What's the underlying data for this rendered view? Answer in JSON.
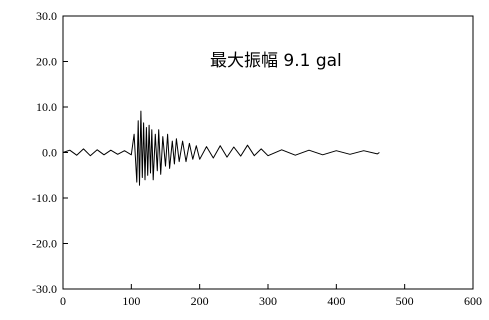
{
  "chart_data": {
    "type": "line",
    "title": "",
    "xlabel": "",
    "ylabel": "",
    "xlim": [
      0,
      600
    ],
    "ylim": [
      -30,
      30
    ],
    "x_ticks": [
      0,
      100,
      200,
      300,
      400,
      500,
      600
    ],
    "y_ticks": [
      30,
      20,
      10,
      0,
      -10,
      -20,
      -30
    ],
    "x_tick_labels": [
      "0",
      "100",
      "200",
      "300",
      "400",
      "500",
      "600"
    ],
    "y_tick_labels": [
      "30.0",
      "20.0",
      "10.0",
      "0.0",
      "-10.0",
      "-20.0",
      "-30.0"
    ],
    "grid": false,
    "legend": "none",
    "annotation": "最大振幅 9.1 gal",
    "max_amplitude": 9.1,
    "line_color": "#000000",
    "series": [
      {
        "x": [
          0,
          10,
          20,
          30,
          40,
          50,
          60,
          70,
          80,
          90,
          100,
          104,
          108,
          110,
          112,
          114,
          116,
          118,
          120,
          122,
          124,
          126,
          128,
          130,
          132,
          135,
          138,
          140,
          143,
          146,
          150,
          153,
          156,
          160,
          163,
          166,
          170,
          175,
          180,
          185,
          190,
          195,
          200,
          210,
          220,
          230,
          240,
          250,
          260,
          270,
          280,
          290,
          300,
          320,
          340,
          360,
          380,
          400,
          420,
          440,
          460,
          463
        ],
        "y": [
          0.0,
          0.5,
          -0.6,
          0.8,
          -0.7,
          0.6,
          -0.5,
          0.5,
          -0.4,
          0.4,
          -0.5,
          4.0,
          -6.5,
          7.0,
          -7.2,
          9.1,
          -5.5,
          6.5,
          -6.0,
          5.5,
          -5.0,
          6.0,
          -4.5,
          5.0,
          -6.0,
          4.0,
          -4.0,
          5.0,
          -4.8,
          3.5,
          -3.0,
          4.0,
          -3.5,
          2.5,
          -2.5,
          3.0,
          -2.0,
          2.5,
          -2.0,
          2.0,
          -1.5,
          1.5,
          -1.5,
          1.3,
          -1.2,
          1.5,
          -1.0,
          1.2,
          -0.8,
          1.6,
          -0.7,
          0.8,
          -0.7,
          0.6,
          -0.6,
          0.5,
          -0.5,
          0.4,
          -0.4,
          0.4,
          -0.3,
          0.0
        ]
      }
    ]
  }
}
